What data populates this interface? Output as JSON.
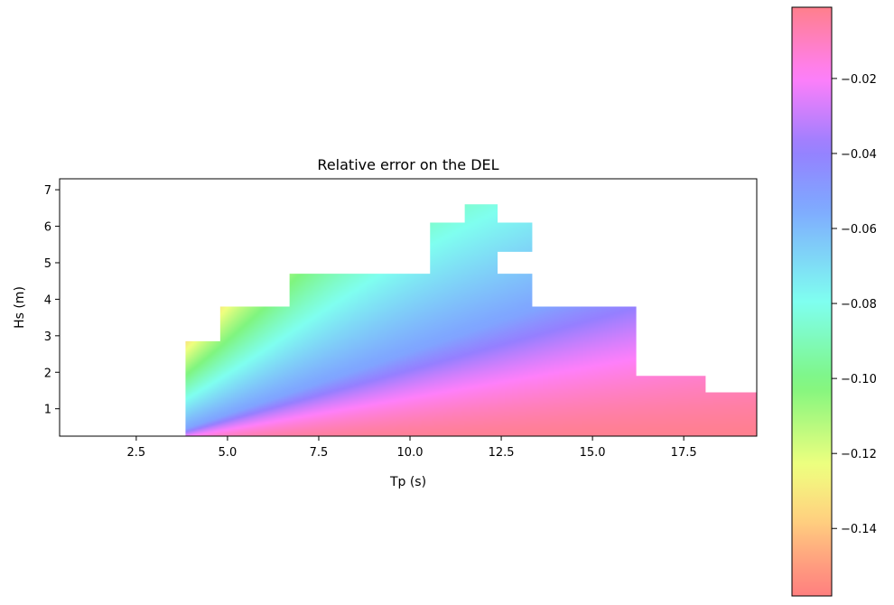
{
  "chart_data": {
    "type": "heatmap",
    "title": "Relative error on the DEL",
    "xlabel": "Tp (s)",
    "ylabel": "Hs (m)",
    "xlim": [
      0.4,
      19.5
    ],
    "ylim": [
      0.25,
      7.3
    ],
    "x_ticks": [
      2.5,
      5.0,
      7.5,
      10.0,
      12.5,
      15.0,
      17.5
    ],
    "x_tick_labels": [
      "2.5",
      "5.0",
      "7.5",
      "10.0",
      "12.5",
      "15.0",
      "17.5"
    ],
    "y_ticks": [
      1,
      2,
      3,
      4,
      5,
      6,
      7
    ],
    "y_tick_labels": [
      "1",
      "2",
      "3",
      "4",
      "5",
      "6",
      "7"
    ],
    "grid": false,
    "colormap": "gist_rainbow (alpha 0.5)",
    "colorbar": {
      "range": [
        -0.158,
        -0.001
      ],
      "ticks": [
        -0.14,
        -0.12,
        -0.1,
        -0.08,
        -0.06,
        -0.04,
        -0.02
      ],
      "tick_labels": [
        "−0.14",
        "−0.12",
        "−0.10",
        "−0.08",
        "−0.06",
        "−0.04",
        "−0.02"
      ],
      "placement": "right"
    },
    "valid_region_columns": [
      {
        "tp_from": 3.85,
        "tp_to": 4.8,
        "hs_max": 2.85
      },
      {
        "tp_from": 4.8,
        "tp_to": 6.7,
        "hs_max": 3.8
      },
      {
        "tp_from": 6.7,
        "tp_to": 10.55,
        "hs_max": 4.7
      },
      {
        "tp_from": 10.55,
        "tp_to": 11.5,
        "hs_max": 6.1
      },
      {
        "tp_from": 11.5,
        "tp_to": 12.4,
        "hs_max": 6.6
      },
      {
        "tp_from": 12.4,
        "tp_to": 13.35,
        "hs_max": 4.7
      },
      {
        "tp_from": 13.35,
        "tp_to": 16.2,
        "hs_max": 3.8
      },
      {
        "tp_from": 16.2,
        "tp_to": 18.1,
        "hs_max": 1.9
      },
      {
        "tp_from": 18.1,
        "tp_to": 19.5,
        "hs_max": 1.45
      }
    ],
    "valid_region_extra": [
      {
        "tp_from": 12.4,
        "tp_to": 13.35,
        "hs_from": 5.3,
        "hs_to": 6.1
      }
    ]
  }
}
